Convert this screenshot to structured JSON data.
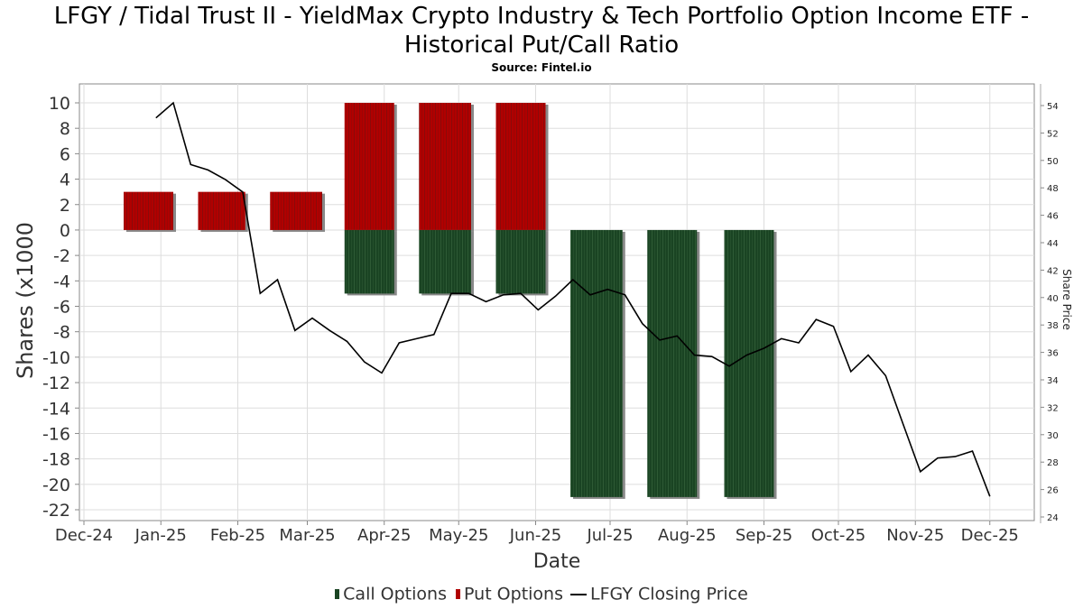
{
  "chart_data": {
    "type": "bar",
    "title": "LFGY / Tidal Trust II - YieldMax Crypto Industry & Tech Portfolio Option Income ETF -",
    "title_line2": "Historical Put/Call Ratio",
    "subtitle": "Source: Fintel.io",
    "xlabel": "Date",
    "ylabel": "Shares (x1000",
    "y2label": "Share Price",
    "ylim": [
      -22,
      10
    ],
    "y_ticks": [
      10,
      8,
      6,
      4,
      2,
      0,
      -2,
      -4,
      -6,
      -8,
      -10,
      -12,
      -14,
      -16,
      -18,
      -20,
      -22
    ],
    "y2lim": [
      24,
      54
    ],
    "y2_ticks": [
      54,
      52,
      50,
      48,
      46,
      44,
      42,
      40,
      38,
      36,
      34,
      32,
      30,
      28,
      26,
      24
    ],
    "x_ticks": [
      {
        "label": "Dec-24",
        "date": "2024-12-01"
      },
      {
        "label": "Jan-25",
        "date": "2025-01-01"
      },
      {
        "label": "Feb-25",
        "date": "2025-02-01"
      },
      {
        "label": "Mar-25",
        "date": "2025-03-01"
      },
      {
        "label": "Apr-25",
        "date": "2025-04-01"
      },
      {
        "label": "May-25",
        "date": "2025-05-01"
      },
      {
        "label": "Jun-25",
        "date": "2025-06-01"
      },
      {
        "label": "Jul-25",
        "date": "2025-07-01"
      },
      {
        "label": "Aug-25",
        "date": "2025-08-01"
      },
      {
        "label": "Sep-25",
        "date": "2025-09-01"
      },
      {
        "label": "Oct-25",
        "date": "2025-10-01"
      },
      {
        "label": "Nov-25",
        "date": "2025-11-01"
      },
      {
        "label": "Dec-25",
        "date": "2025-12-01"
      }
    ],
    "x_range": [
      "2024-11-29",
      "2025-12-19"
    ],
    "grid": true,
    "legend_position": "bottom",
    "legend": [
      "Call Options",
      "Put Options",
      "LFGY Closing Price"
    ],
    "colors": {
      "calls": "#1a4423",
      "puts": "#b00000",
      "price": "#000000",
      "shadow": "#888888"
    },
    "bars": [
      {
        "start": "2024-12-17",
        "end": "2025-01-06",
        "puts": 3,
        "calls": 0
      },
      {
        "start": "2025-01-16",
        "end": "2025-02-04",
        "puts": 3,
        "calls": 0
      },
      {
        "start": "2025-02-14",
        "end": "2025-03-07",
        "puts": 3,
        "calls": 0
      },
      {
        "start": "2025-03-16",
        "end": "2025-04-05",
        "puts": 10,
        "calls": -5
      },
      {
        "start": "2025-04-15",
        "end": "2025-05-06",
        "puts": 10,
        "calls": -5
      },
      {
        "start": "2025-05-16",
        "end": "2025-06-05",
        "puts": 10,
        "calls": -5
      },
      {
        "start": "2025-06-15",
        "end": "2025-07-06",
        "puts": 0,
        "calls": -21
      },
      {
        "start": "2025-07-16",
        "end": "2025-08-05",
        "puts": 0,
        "calls": -21
      },
      {
        "start": "2025-08-16",
        "end": "2025-09-05",
        "puts": 0,
        "calls": -21
      }
    ],
    "price": {
      "start": "2024-12-30",
      "step_days": 7,
      "values": [
        53.1,
        54.2,
        49.7,
        49.3,
        48.6,
        47.7,
        40.3,
        41.3,
        37.6,
        38.5,
        37.6,
        36.8,
        35.3,
        34.5,
        36.7,
        37.0,
        37.3,
        40.3,
        40.3,
        39.7,
        40.2,
        40.3,
        39.1,
        40.1,
        41.3,
        40.2,
        40.6,
        40.2,
        38.1,
        36.9,
        37.2,
        35.8,
        35.7,
        35.0,
        35.8,
        36.3,
        37.0,
        36.7,
        38.4,
        37.9,
        34.6,
        35.8,
        34.3,
        30.8,
        27.3,
        28.3,
        28.4,
        28.8,
        25.5
      ]
    }
  }
}
